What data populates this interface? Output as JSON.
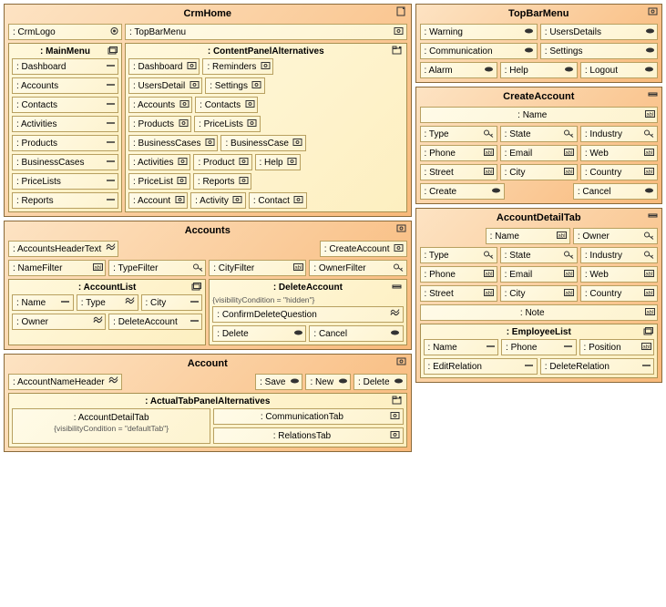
{
  "crmHome": {
    "title": "CrmHome",
    "logo": ": CrmLogo",
    "topBar": ": TopBarMenu",
    "mainMenu": {
      "title": ": MainMenu",
      "items": [
        ": Dashboard",
        ": Accounts",
        ": Contacts",
        ": Activities",
        ": Products",
        ": BusinessCases",
        ": PriceLists",
        ": Reports"
      ]
    },
    "contentPanel": {
      "title": ": ContentPanelAlternatives",
      "rows": [
        [
          ": Dashboard",
          ": Reminders"
        ],
        [
          ": UsersDetail",
          ": Settings"
        ],
        [
          ": Accounts",
          ": Contacts"
        ],
        [
          ": Products",
          ": PriceLists"
        ],
        [
          ": BusinessCases",
          ": BusinessCase"
        ],
        [
          ": Activities",
          ": Product",
          ": Help"
        ],
        [
          ": PriceList",
          ": Reports"
        ],
        [
          ": Account",
          ": Activity",
          ": Contact"
        ]
      ]
    }
  },
  "topBarMenu": {
    "title": "TopBarMenu",
    "row1": [
      ": Warning",
      ": UsersDetails"
    ],
    "row2": [
      ": Communication",
      ": Settings"
    ],
    "row3": [
      ": Alarm",
      ": Help",
      ": Logout"
    ]
  },
  "createAccount": {
    "title": "CreateAccount",
    "name": ": Name",
    "rows": [
      [
        {
          "t": ": Type",
          "g": "key"
        },
        {
          "t": ": State",
          "g": "key"
        },
        {
          "t": ": Industry",
          "g": "key"
        }
      ],
      [
        {
          "t": ": Phone",
          "g": "abl"
        },
        {
          "t": ": Email",
          "g": "abl"
        },
        {
          "t": ": Web",
          "g": "abl"
        }
      ],
      [
        {
          "t": ": Street",
          "g": "abl"
        },
        {
          "t": ": City",
          "g": "abl"
        },
        {
          "t": ": Country",
          "g": "abl"
        }
      ]
    ],
    "bottom": [
      {
        "t": ": Create",
        "g": "oval"
      },
      {
        "t": ": Cancel",
        "g": "oval"
      }
    ]
  },
  "accounts": {
    "title": "Accounts",
    "header": ": AccountsHeaderText",
    "create": ": CreateAccount",
    "filters": [
      {
        "t": ": NameFilter",
        "g": "abl"
      },
      {
        "t": ": TypeFilter",
        "g": "key"
      },
      {
        "t": ": CityFilter",
        "g": "abl"
      },
      {
        "t": ": OwnerFilter",
        "g": "key"
      }
    ],
    "accountList": {
      "title": ": AccountList",
      "r1": [
        {
          "t": ": Name",
          "g": "line"
        },
        {
          "t": ": Type",
          "g": "wave"
        },
        {
          "t": ": City",
          "g": "line"
        }
      ],
      "r2": [
        {
          "t": ": Owner",
          "g": "wave"
        },
        {
          "t": ": DeleteAccount",
          "g": "line"
        }
      ]
    },
    "deleteAccount": {
      "title": ": DeleteAccount",
      "note": "{visibilityCondition = \"hidden\"}",
      "q": {
        "t": ": ConfirmDeleteQuestion",
        "g": "wave"
      },
      "btns": [
        {
          "t": ": Delete",
          "g": "oval"
        },
        {
          "t": ": Cancel",
          "g": "oval"
        }
      ]
    }
  },
  "accountDetailTab": {
    "title": "AccountDetailTab",
    "r0": [
      {
        "t": ": Name",
        "g": "abl"
      },
      {
        "t": ": Owner",
        "g": "key"
      }
    ],
    "r1": [
      {
        "t": ": Type",
        "g": "key"
      },
      {
        "t": ": State",
        "g": "key"
      },
      {
        "t": ": Industry",
        "g": "key"
      }
    ],
    "r2": [
      {
        "t": ": Phone",
        "g": "abl"
      },
      {
        "t": ": Email",
        "g": "abl"
      },
      {
        "t": ": Web",
        "g": "abl"
      }
    ],
    "r3": [
      {
        "t": ": Street",
        "g": "abl"
      },
      {
        "t": ": City",
        "g": "abl"
      },
      {
        "t": ": Country",
        "g": "abl"
      }
    ],
    "note": ": Note",
    "employeeList": {
      "title": ": EmployeeList",
      "r1": [
        {
          "t": ": Name",
          "g": "line"
        },
        {
          "t": ": Phone",
          "g": "line"
        },
        {
          "t": ": Position",
          "g": "abl"
        }
      ],
      "r2": [
        {
          "t": ": EditRelation",
          "g": "line"
        },
        {
          "t": ": DeleteRelation",
          "g": "line"
        }
      ]
    }
  },
  "account": {
    "title": "Account",
    "header": {
      "t": ": AccountNameHeader",
      "g": "wave"
    },
    "btns": [
      {
        "t": ": Save",
        "g": "oval"
      },
      {
        "t": ": New",
        "g": "oval"
      },
      {
        "t": ": Delete",
        "g": "oval"
      }
    ],
    "tabs": {
      "title": ": ActualTabPanelAlternatives",
      "detail": {
        "t": ": AccountDetailTab",
        "note": "{visibilityCondition = \"defaultTab\"}"
      },
      "others": [
        ": CommunicationTab",
        ": RelationsTab"
      ]
    }
  },
  "glyphs": {
    "page": "page",
    "circle": "circle",
    "stack": "stack",
    "tabs": "tabs",
    "line": "line",
    "wave": "wave",
    "oval": "oval",
    "abl": "abl",
    "key": "key",
    "box": "box",
    "dash": "dash"
  },
  "colors": {
    "frameBorder": "#8a6a3a",
    "subBorder": "#a89050",
    "itemBorder": "#b8a060"
  }
}
